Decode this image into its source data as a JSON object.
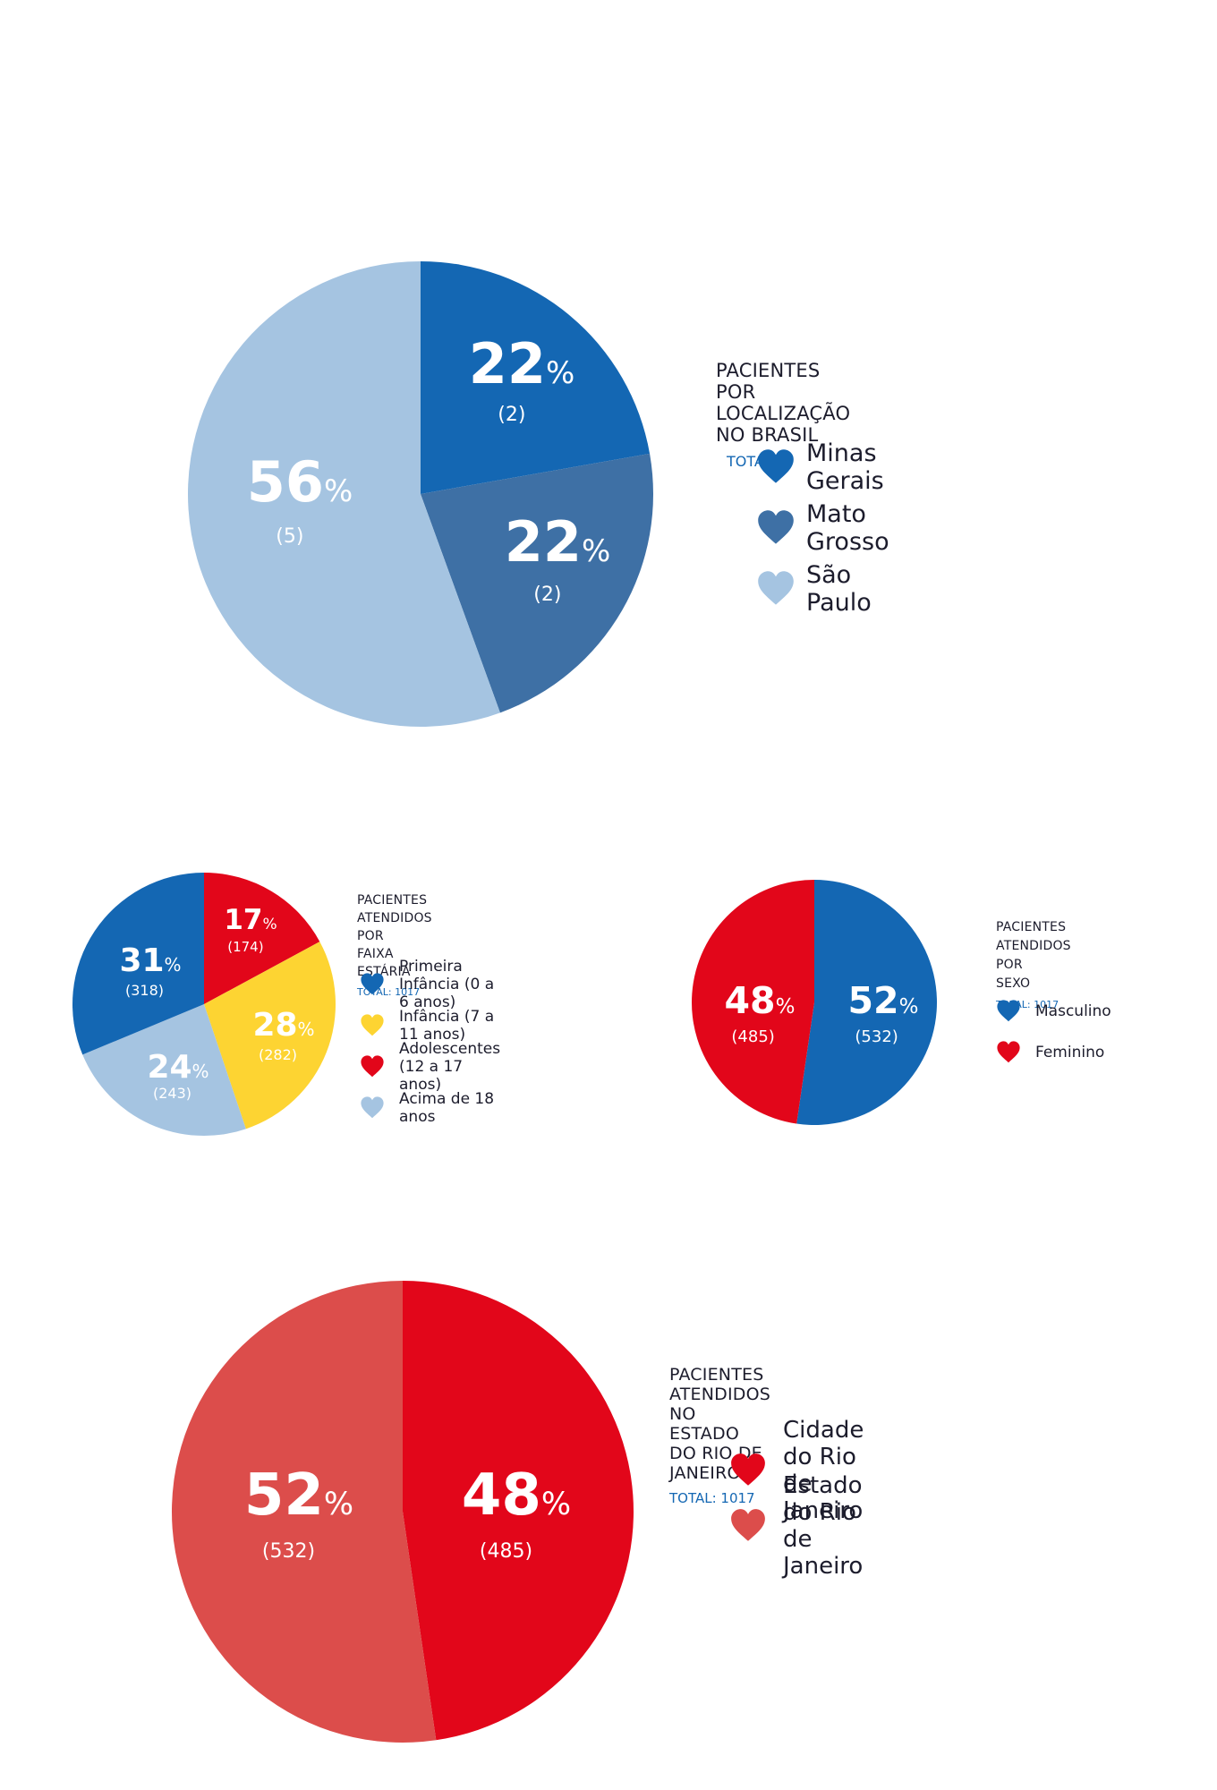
{
  "chart_data": [
    {
      "type": "pie",
      "title": "PACIENTES POR LOCALIZAÇÃO NO BRASIL",
      "subtitle": "TOTAL: 9",
      "categories": [
        "Minas Gerais",
        "Mato Grosso",
        "São Paulo"
      ],
      "values": [
        2,
        2,
        5
      ],
      "percent_labels": [
        "22",
        "22",
        "56"
      ],
      "count_labels": [
        "(2)",
        "(2)",
        "(5)"
      ],
      "colors": [
        "#1467b3",
        "#3e70a5",
        "#a5c4e1"
      ],
      "legend": "right"
    },
    {
      "type": "pie",
      "title": "PACIENTES ATENDIDOS POR FAIXA ESTÁRIA",
      "title_lines": [
        "PACIENTES ATENDIDOS POR",
        "FAIXA ESTÁRIA"
      ],
      "subtitle": "TOTAL: 1017",
      "categories": [
        "Adolescentes (12 a 17 anos)",
        "Infância (7 a 11 anos)",
        "Acima de 18 anos",
        "Primeira Infância (0 a 6 anos)"
      ],
      "values": [
        174,
        282,
        243,
        318
      ],
      "percent_labels": [
        "17",
        "28",
        "24",
        "31"
      ],
      "count_labels": [
        "(174)",
        "(282)",
        "(243)",
        "(318)"
      ],
      "colors": [
        "#e2061a",
        "#fdd432",
        "#a5c4e1",
        "#1467b3"
      ],
      "legend_items": [
        {
          "label": "Primeira Infância (0 a 6 anos)",
          "color": "#1467b3"
        },
        {
          "label": "Infância (7 a 11 anos)",
          "color": "#fdd432"
        },
        {
          "label": "Adolescentes (12 a 17 anos)",
          "color": "#e2061a"
        },
        {
          "label": "Acima de 18 anos",
          "color": "#a5c4e1"
        }
      ],
      "legend": "right"
    },
    {
      "type": "pie",
      "title": "PACIENTES ATENDIDOS POR SEXO",
      "title_lines": [
        "PACIENTES ATENDIDOS POR",
        "SEXO"
      ],
      "subtitle": "TOTAL: 1017",
      "categories": [
        "Masculino",
        "Feminino"
      ],
      "values": [
        532,
        485
      ],
      "percent_labels": [
        "52",
        "48"
      ],
      "count_labels": [
        "(532)",
        "(485)"
      ],
      "colors": [
        "#1467b3",
        "#e2061a"
      ],
      "legend": "right"
    },
    {
      "type": "pie",
      "title": "PACIENTES ATENDIDOS NO ESTADO DO RIO DE JANEIRO",
      "subtitle": "TOTAL: 1017",
      "categories": [
        "Cidade do Rio de Janeiro",
        "Estado do Rio de Janeiro"
      ],
      "values": [
        485,
        532
      ],
      "percent_labels": [
        "48",
        "52"
      ],
      "count_labels": [
        "(485)",
        "(532)"
      ],
      "colors": [
        "#e2061a",
        "#dc4d4b"
      ],
      "legend": "right"
    }
  ],
  "percent_sign": "%"
}
